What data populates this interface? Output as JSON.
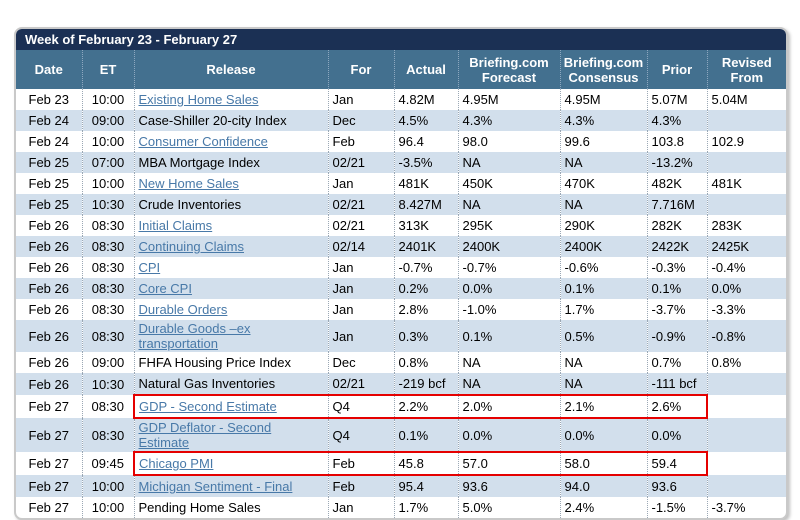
{
  "title_bar": {
    "text": "Week of February 23 - February 27"
  },
  "colors": {
    "title_navy": "#1b3054",
    "header_blue": "#43708f",
    "row_stripe": "#d2dfec",
    "link_blue": "#4879a8",
    "highlight_red": "#e50000"
  },
  "table": {
    "columns": [
      "Date",
      "ET",
      "Release",
      "For",
      "Actual",
      "Briefing.com Forecast",
      "Briefing.com Consensus",
      "Prior",
      "Revised From"
    ],
    "rows": [
      {
        "date": "Feb 23",
        "et": "10:00",
        "release": "Existing Home Sales",
        "link": true,
        "wrap": false,
        "highlight": false,
        "for": "Jan",
        "actual": "4.82M",
        "forecast": "4.95M",
        "consensus": "4.95M",
        "prior": "5.07M",
        "revised": "5.04M"
      },
      {
        "date": "Feb 24",
        "et": "09:00",
        "release": "Case-Shiller 20-city Index",
        "link": false,
        "wrap": false,
        "highlight": false,
        "for": "Dec",
        "actual": "4.5%",
        "forecast": "4.3%",
        "consensus": "4.3%",
        "prior": "4.3%",
        "revised": ""
      },
      {
        "date": "Feb 24",
        "et": "10:00",
        "release": "Consumer Confidence",
        "link": true,
        "wrap": false,
        "highlight": false,
        "for": "Feb",
        "actual": "96.4",
        "forecast": "98.0",
        "consensus": "99.6",
        "prior": "103.8",
        "revised": "102.9"
      },
      {
        "date": "Feb 25",
        "et": "07:00",
        "release": "MBA Mortgage Index",
        "link": false,
        "wrap": false,
        "highlight": false,
        "for": "02/21",
        "actual": "-3.5%",
        "forecast": "NA",
        "consensus": "NA",
        "prior": "-13.2%",
        "revised": ""
      },
      {
        "date": "Feb 25",
        "et": "10:00",
        "release": "New Home Sales",
        "link": true,
        "wrap": false,
        "highlight": false,
        "for": "Jan",
        "actual": "481K",
        "forecast": "450K",
        "consensus": "470K",
        "prior": "482K",
        "revised": "481K"
      },
      {
        "date": "Feb 25",
        "et": "10:30",
        "release": "Crude Inventories",
        "link": false,
        "wrap": false,
        "highlight": false,
        "for": "02/21",
        "actual": "8.427M",
        "forecast": "NA",
        "consensus": "NA",
        "prior": "7.716M",
        "revised": ""
      },
      {
        "date": "Feb 26",
        "et": "08:30",
        "release": "Initial Claims",
        "link": true,
        "wrap": false,
        "highlight": false,
        "for": "02/21",
        "actual": "313K",
        "forecast": "295K",
        "consensus": "290K",
        "prior": "282K",
        "revised": "283K"
      },
      {
        "date": "Feb 26",
        "et": "08:30",
        "release": "Continuing Claims",
        "link": true,
        "wrap": false,
        "highlight": false,
        "for": "02/14",
        "actual": "2401K",
        "forecast": "2400K",
        "consensus": "2400K",
        "prior": "2422K",
        "revised": "2425K"
      },
      {
        "date": "Feb 26",
        "et": "08:30",
        "release": "CPI",
        "link": true,
        "wrap": false,
        "highlight": false,
        "for": "Jan",
        "actual": "-0.7%",
        "forecast": "-0.7%",
        "consensus": "-0.6%",
        "prior": "-0.3%",
        "revised": "-0.4%"
      },
      {
        "date": "Feb 26",
        "et": "08:30",
        "release": "Core CPI",
        "link": true,
        "wrap": false,
        "highlight": false,
        "for": "Jan",
        "actual": "0.2%",
        "forecast": "0.0%",
        "consensus": "0.1%",
        "prior": "0.1%",
        "revised": "0.0%"
      },
      {
        "date": "Feb 26",
        "et": "08:30",
        "release": "Durable Orders",
        "link": true,
        "wrap": false,
        "highlight": false,
        "for": "Jan",
        "actual": "2.8%",
        "forecast": "-1.0%",
        "consensus": "1.7%",
        "prior": "-3.7%",
        "revised": "-3.3%"
      },
      {
        "date": "Feb 26",
        "et": "08:30",
        "release": "Durable Goods –ex transportation",
        "link": true,
        "wrap": true,
        "highlight": false,
        "for": "Jan",
        "actual": "0.3%",
        "forecast": "0.1%",
        "consensus": "0.5%",
        "prior": "-0.9%",
        "revised": "-0.8%"
      },
      {
        "date": "Feb 26",
        "et": "09:00",
        "release": "FHFA Housing Price Index",
        "link": false,
        "wrap": false,
        "highlight": false,
        "for": "Dec",
        "actual": "0.8%",
        "forecast": "NA",
        "consensus": "NA",
        "prior": "0.7%",
        "revised": "0.8%"
      },
      {
        "date": "Feb 26",
        "et": "10:30",
        "release": "Natural Gas Inventories",
        "link": false,
        "wrap": false,
        "highlight": false,
        "for": "02/21",
        "actual": "-219 bcf",
        "forecast": "NA",
        "consensus": "NA",
        "prior": "-111 bcf",
        "revised": ""
      },
      {
        "date": "Feb 27",
        "et": "08:30",
        "release": "GDP - Second Estimate",
        "link": true,
        "wrap": false,
        "highlight": true,
        "for": "Q4",
        "actual": "2.2%",
        "forecast": "2.0%",
        "consensus": "2.1%",
        "prior": "2.6%",
        "revised": ""
      },
      {
        "date": "Feb 27",
        "et": "08:30",
        "release": "GDP Deflator - Second Estimate",
        "link": true,
        "wrap": true,
        "highlight": false,
        "for": "Q4",
        "actual": "0.1%",
        "forecast": "0.0%",
        "consensus": "0.0%",
        "prior": "0.0%",
        "revised": ""
      },
      {
        "date": "Feb 27",
        "et": "09:45",
        "release": "Chicago PMI",
        "link": true,
        "wrap": false,
        "highlight": true,
        "for": "Feb",
        "actual": "45.8",
        "forecast": "57.0",
        "consensus": "58.0",
        "prior": "59.4",
        "revised": ""
      },
      {
        "date": "Feb 27",
        "et": "10:00",
        "release": "Michigan Sentiment - Final",
        "link": true,
        "wrap": false,
        "highlight": false,
        "for": "Feb",
        "actual": "95.4",
        "forecast": "93.6",
        "consensus": "94.0",
        "prior": "93.6",
        "revised": ""
      },
      {
        "date": "Feb 27",
        "et": "10:00",
        "release": "Pending Home Sales",
        "link": false,
        "wrap": false,
        "highlight": false,
        "for": "Jan",
        "actual": "1.7%",
        "forecast": "5.0%",
        "consensus": "2.4%",
        "prior": "-1.5%",
        "revised": "-3.7%"
      }
    ]
  }
}
